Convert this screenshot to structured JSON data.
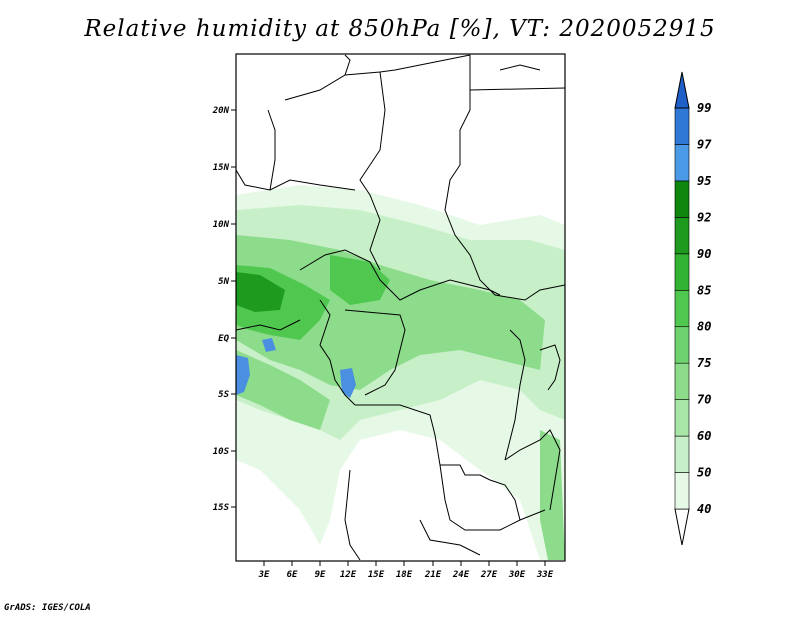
{
  "title": "Relative humidity at 850hPa [%], VT: 2020052915",
  "credit": "GrADS: IGES/COLA",
  "map": {
    "lat_labels": [
      "20N",
      "15N",
      "10N",
      "5N",
      "EQ",
      "5S",
      "10S",
      "15S"
    ],
    "lon_labels": [
      "3E",
      "6E",
      "9E",
      "12E",
      "15E",
      "18E",
      "21E",
      "24E",
      "27E",
      "30E",
      "33E"
    ]
  },
  "colorbar": {
    "labels": [
      "40",
      "50",
      "60",
      "70",
      "75",
      "80",
      "85",
      "90",
      "92",
      "95",
      "97",
      "99"
    ],
    "colors": [
      "#ffffff",
      "#e6f9e6",
      "#c8f0c8",
      "#a8e6a8",
      "#8cdc8c",
      "#6ed26e",
      "#50c850",
      "#32b432",
      "#1e9b1e",
      "#0f870f",
      "#4a9ae8",
      "#2f78d6",
      "#1e5fc8"
    ]
  },
  "palette": {
    "green_light": "#e6f9e6",
    "green_mid": "#8cdc8c",
    "green_dark": "#32b432",
    "blue": "#4a8fe0",
    "border": "#000000"
  }
}
